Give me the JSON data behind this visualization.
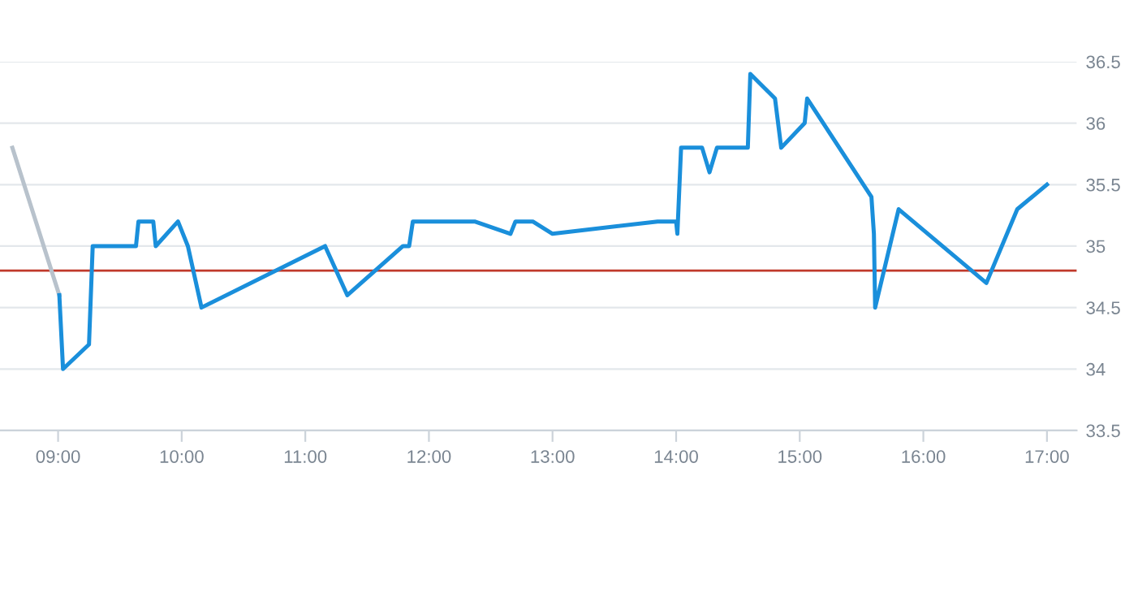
{
  "chart_data": {
    "type": "line",
    "series": [
      {
        "color": "#b8c2cc",
        "x": [
          8.63,
          9.01
        ],
        "values": [
          35.8,
          34.6
        ]
      },
      {
        "color": "#1a8fdb",
        "x": [
          9.01,
          9.04,
          9.25,
          9.28,
          9.63,
          9.65,
          9.77,
          9.79,
          9.97,
          10.05,
          10.16,
          11.16,
          11.34,
          11.79,
          11.84,
          11.87,
          12.37,
          12.66,
          12.7,
          12.84,
          13.0,
          13.85,
          14.0,
          14.01,
          14.04,
          14.21,
          14.27,
          14.33,
          14.58,
          14.6,
          14.8,
          14.85,
          15.04,
          15.06,
          15.58,
          15.6,
          15.61,
          15.8,
          16.51,
          16.76,
          17.0
        ],
        "values": [
          34.6,
          34.0,
          34.2,
          35.0,
          35.0,
          35.2,
          35.2,
          35.0,
          35.2,
          35.0,
          34.5,
          35.0,
          34.6,
          35.0,
          35.0,
          35.2,
          35.2,
          35.1,
          35.2,
          35.2,
          35.1,
          35.2,
          35.2,
          35.1,
          35.8,
          35.8,
          35.6,
          35.8,
          35.8,
          36.4,
          36.2,
          35.8,
          36.0,
          36.2,
          35.4,
          35.1,
          34.5,
          35.3,
          34.7,
          35.3,
          35.5
        ]
      }
    ],
    "xlim": [
      8.53,
      17.24
    ],
    "xticks": [
      {
        "value": 9,
        "label": "09:00"
      },
      {
        "value": 10,
        "label": "10:00"
      },
      {
        "value": 11,
        "label": "11:00"
      },
      {
        "value": 12,
        "label": "12:00"
      },
      {
        "value": 13,
        "label": "13:00"
      },
      {
        "value": 14,
        "label": "14:00"
      },
      {
        "value": 15,
        "label": "15:00"
      },
      {
        "value": 16,
        "label": "16:00"
      },
      {
        "value": 17,
        "label": "17:00"
      }
    ],
    "ylim": [
      33.5,
      36.5
    ],
    "yticks": [
      33.5,
      34,
      34.5,
      35,
      35.5,
      36,
      36.5
    ],
    "ref_lines": [
      {
        "axis": "y",
        "value": 34.8,
        "color": "#c0392b"
      }
    ],
    "grid": "y",
    "legend": false,
    "marker": "none",
    "line_style": "solid"
  }
}
